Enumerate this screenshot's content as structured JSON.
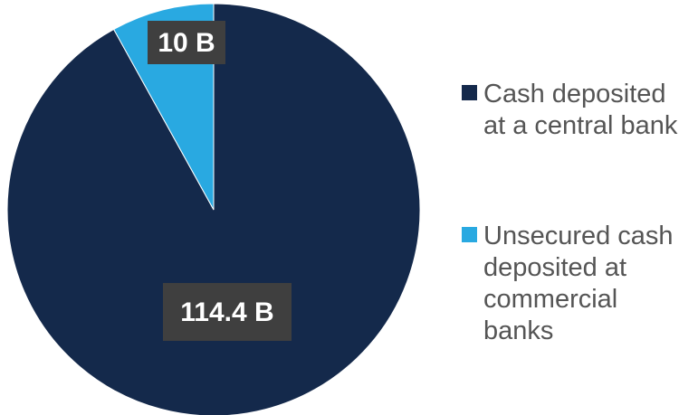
{
  "chart_data": {
    "type": "pie",
    "title": "",
    "categories": [
      "Cash deposited at a central bank",
      "Unsecured cash deposited at commercial banks"
    ],
    "values": [
      114.4,
      10
    ],
    "data_labels": [
      "114.4 B",
      "10 B"
    ],
    "colors": [
      "#14294b",
      "#29a9e1"
    ],
    "legend": {
      "placement": "right",
      "entries": [
        {
          "lines": [
            "Cash deposited",
            "at a central bank"
          ],
          "color": "#14294b"
        },
        {
          "lines": [
            "Unsecured cash",
            "deposited at",
            "commercial",
            "banks"
          ],
          "color": "#29a9e1"
        }
      ]
    }
  }
}
